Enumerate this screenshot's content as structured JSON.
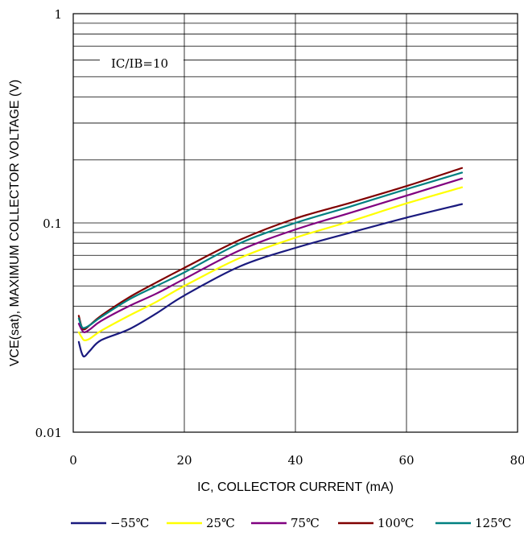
{
  "chart_data": {
    "type": "line",
    "title": "",
    "xlabel": "IC, COLLECTOR CURRENT (mA)",
    "ylabel": "VCE(sat), MAXIMUM COLLECTOR VOLTAGE (V)",
    "xlim": [
      0,
      80
    ],
    "ylim": [
      0.01,
      1
    ],
    "yscale": "log",
    "grid": true,
    "x_ticks": [
      0,
      20,
      40,
      60,
      80
    ],
    "x_tick_labels": [
      "0",
      "20",
      "40",
      "60",
      "80"
    ],
    "y_ticks": [
      0.01,
      0.1,
      1
    ],
    "y_tick_labels": [
      "0.01",
      "0.1",
      "1"
    ],
    "annotation": "IC/IB=10",
    "legend_position": "bottom",
    "x": [
      1,
      1.5,
      2,
      3,
      5,
      10,
      15,
      20,
      30,
      40,
      50,
      60,
      70
    ],
    "series": [
      {
        "name": "−55℃",
        "color": "#1a1a7e",
        "values": [
          0.027,
          0.024,
          0.023,
          0.0245,
          0.0275,
          0.031,
          0.037,
          0.045,
          0.062,
          0.076,
          0.09,
          0.106,
          0.123
        ]
      },
      {
        "name": "25℃",
        "color": "#ffff00",
        "values": [
          0.03,
          0.0285,
          0.0275,
          0.028,
          0.0305,
          0.036,
          0.042,
          0.05,
          0.068,
          0.085,
          0.102,
          0.124,
          0.148
        ]
      },
      {
        "name": "75℃",
        "color": "#800080",
        "values": [
          0.033,
          0.031,
          0.03,
          0.031,
          0.034,
          0.04,
          0.046,
          0.054,
          0.074,
          0.093,
          0.112,
          0.135,
          0.163
        ]
      },
      {
        "name": "100℃",
        "color": "#800000",
        "values": [
          0.036,
          0.032,
          0.031,
          0.0325,
          0.036,
          0.044,
          0.052,
          0.061,
          0.083,
          0.105,
          0.125,
          0.15,
          0.183
        ]
      },
      {
        "name": "125℃",
        "color": "#008080",
        "values": [
          0.035,
          0.032,
          0.0315,
          0.0325,
          0.0355,
          0.043,
          0.05,
          0.058,
          0.08,
          0.1,
          0.12,
          0.145,
          0.174
        ]
      }
    ]
  }
}
